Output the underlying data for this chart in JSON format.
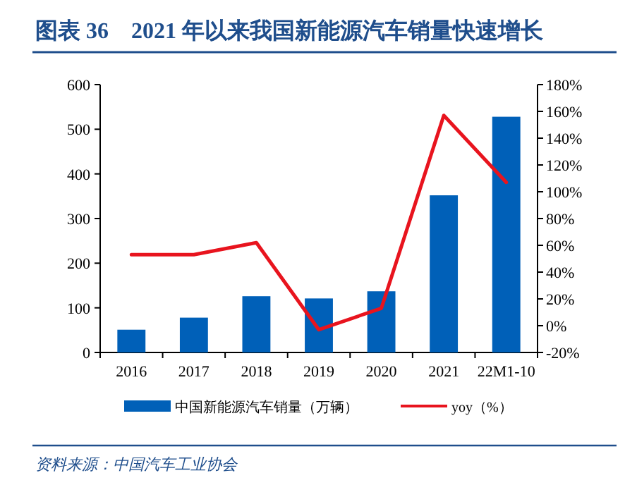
{
  "chart_data": {
    "type": "bar",
    "title": "图表 36　2021 年以来我国新能源汽车销量快速增长",
    "annotations": [
      "资料来源：中国汽车工业协会"
    ],
    "categories": [
      "2016",
      "2017",
      "2018",
      "2019",
      "2020",
      "2021",
      "22M1-10"
    ],
    "series": [
      {
        "name": "中国新能源汽车销量（万辆）",
        "color": "#0060b8",
        "values": [
          51,
          78,
          126,
          121,
          137,
          352,
          528
        ]
      },
      {
        "name": "yoy（%）",
        "type": "line",
        "axis": "y2",
        "color": "#e8141e",
        "values": [
          53,
          53,
          62,
          -3,
          13,
          157,
          107
        ]
      }
    ],
    "ylim": [
      0,
      600
    ],
    "yticks": [
      0,
      100,
      200,
      300,
      400,
      500,
      600
    ],
    "y2lim": [
      -20,
      180
    ],
    "y2ticks": [
      {
        "value": -20,
        "label": "-20%"
      },
      {
        "value": 0,
        "label": "0%"
      },
      {
        "value": 20,
        "label": "20%"
      },
      {
        "value": 40,
        "label": "40%"
      },
      {
        "value": 60,
        "label": "60%"
      },
      {
        "value": 80,
        "label": "80%"
      },
      {
        "value": 100,
        "label": "100%"
      },
      {
        "value": 120,
        "label": "120%"
      },
      {
        "value": 140,
        "label": "140%"
      },
      {
        "value": 160,
        "label": "160%"
      },
      {
        "value": 180,
        "label": "180%"
      }
    ],
    "legend": "bottom",
    "grid": false
  }
}
